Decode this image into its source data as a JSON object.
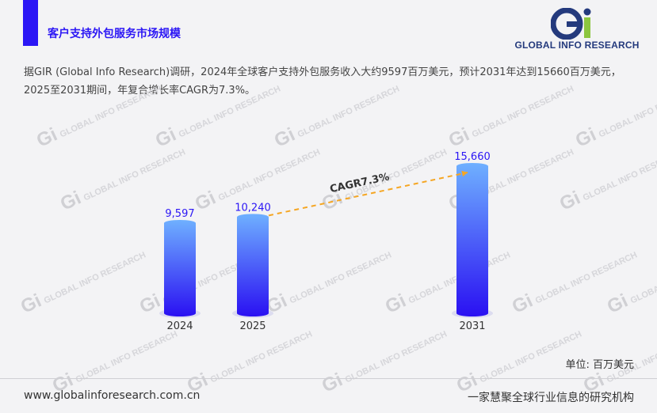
{
  "header": {
    "title": "客户支持外包服务市场规模"
  },
  "logo": {
    "brand_text": "GLOBAL INFO RESEARCH",
    "mark_text": "Gi"
  },
  "summary": "据GIR (Global Info Research)调研，2024年全球客户支持外包服务收入大约9597百万美元，预计2031年达到15660百万美元，2025至2031期间，年复合增长率CAGR为7.3%。",
  "unit_label": "单位: 百万美元",
  "footer": {
    "url": "www.globalinforesearch.com.cn",
    "slogan": "一家慧聚全球行业信息的研究机构"
  },
  "watermark": {
    "text": "GLOBAL INFO RESEARCH",
    "mark": "Gi"
  },
  "colors": {
    "accent": "#2b16f5",
    "bar_top": "#6fb0ff",
    "bar_bottom": "#2a10f2",
    "cagr_line": "#f5a623",
    "value_label": "#2b16f5"
  },
  "chart_data": {
    "type": "bar",
    "categories": [
      "2024",
      "2025",
      "2031"
    ],
    "values": [
      9597,
      10240,
      15660
    ],
    "value_labels": [
      "9,597",
      "10,240",
      "15,660"
    ],
    "annotation": {
      "text": "CAGR7.3%",
      "from": "2025",
      "to": "2031"
    },
    "ylim": [
      0,
      16500
    ],
    "grid": false,
    "legend": "none"
  }
}
